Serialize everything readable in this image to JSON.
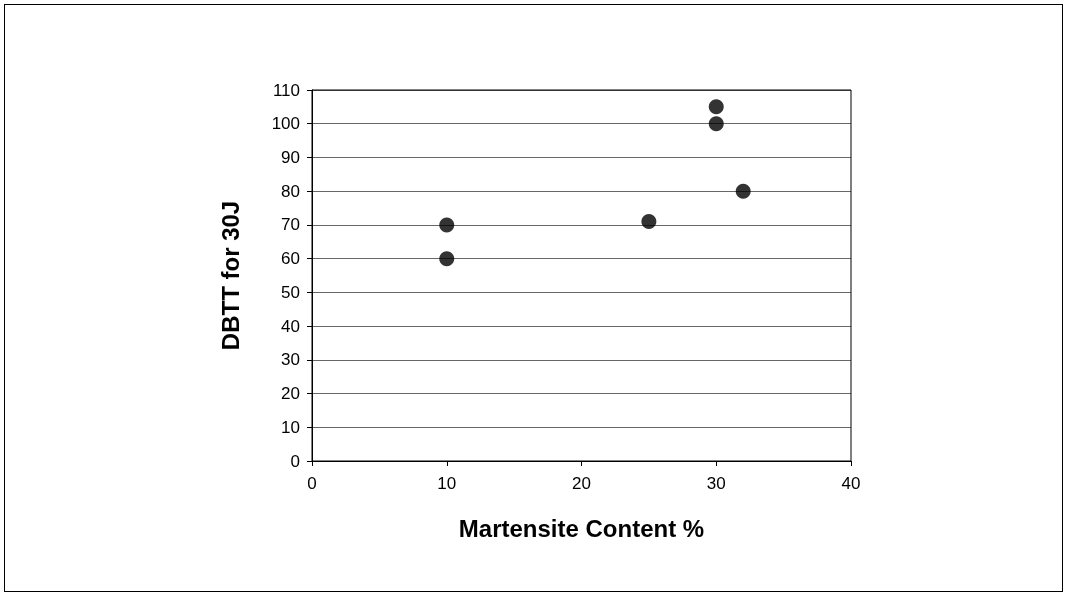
{
  "chart_data": {
    "type": "scatter",
    "xlabel": "Martensite Content %",
    "ylabel": "DBTT for 30J",
    "x": [
      10,
      10,
      25,
      30,
      30,
      32
    ],
    "series": [
      {
        "color": "#000000",
        "values": [
          70,
          60,
          71,
          105,
          100,
          80
        ]
      }
    ],
    "xlim": [
      0,
      40
    ],
    "xticks": [
      0,
      10,
      20,
      30,
      40
    ],
    "ylim": [
      0,
      110
    ],
    "yticks": [
      0,
      10,
      20,
      30,
      40,
      50,
      60,
      70,
      80,
      90,
      100,
      110
    ],
    "grid": "y",
    "marker": "circle"
  }
}
